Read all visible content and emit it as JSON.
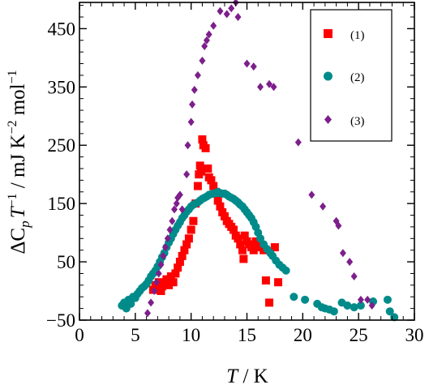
{
  "chart_data": {
    "type": "scatter",
    "xlabel_main": "T",
    "xlabel_unit": " / K",
    "ylabel_delta": "ΔC",
    "ylabel_sub": "p",
    "ylabel_T": "T",
    "ylabel_exp1": "−1",
    "ylabel_mid": " / mJ K",
    "ylabel_exp2": "−2",
    "ylabel_mol": " mol",
    "ylabel_exp3": "−1",
    "xlim": [
      0,
      30
    ],
    "ylim": [
      -50,
      495
    ],
    "xticks": [
      0,
      5,
      10,
      15,
      20,
      25,
      30
    ],
    "yticks": [
      -50,
      50,
      150,
      250,
      350,
      450
    ],
    "ytick_labels": [
      "−50",
      "50",
      "150",
      "250",
      "350",
      "450"
    ],
    "legend_position": "top-right",
    "series": [
      {
        "name": "(1)",
        "marker": "square",
        "color": "#ff0000",
        "points": [
          [
            6.6,
            2
          ],
          [
            6.8,
            10
          ],
          [
            7.0,
            5
          ],
          [
            7.1,
            15
          ],
          [
            7.3,
            0
          ],
          [
            7.4,
            8
          ],
          [
            7.6,
            12
          ],
          [
            7.8,
            20
          ],
          [
            8.0,
            10
          ],
          [
            8.2,
            25
          ],
          [
            8.4,
            15
          ],
          [
            8.6,
            30
          ],
          [
            8.8,
            40
          ],
          [
            9.0,
            50
          ],
          [
            9.2,
            60
          ],
          [
            9.4,
            70
          ],
          [
            9.6,
            80
          ],
          [
            9.8,
            90
          ],
          [
            10.0,
            105
          ],
          [
            10.2,
            120
          ],
          [
            10.4,
            150
          ],
          [
            10.6,
            180
          ],
          [
            10.7,
            200
          ],
          [
            10.8,
            215
          ],
          [
            10.9,
            205
          ],
          [
            11.0,
            260
          ],
          [
            11.1,
            250
          ],
          [
            11.3,
            245
          ],
          [
            11.5,
            210
          ],
          [
            11.6,
            195
          ],
          [
            11.8,
            190
          ],
          [
            12.0,
            180
          ],
          [
            12.2,
            170
          ],
          [
            12.4,
            155
          ],
          [
            12.6,
            145
          ],
          [
            12.8,
            135
          ],
          [
            13.0,
            128
          ],
          [
            13.2,
            120
          ],
          [
            13.4,
            115
          ],
          [
            13.6,
            110
          ],
          [
            13.8,
            105
          ],
          [
            14.0,
            95
          ],
          [
            14.2,
            90
          ],
          [
            14.4,
            80
          ],
          [
            14.6,
            70
          ],
          [
            14.7,
            55
          ],
          [
            14.8,
            95
          ],
          [
            15.0,
            85
          ],
          [
            15.2,
            80
          ],
          [
            15.4,
            75
          ],
          [
            15.6,
            70
          ],
          [
            15.8,
            85
          ],
          [
            16.0,
            80
          ],
          [
            16.2,
            75
          ],
          [
            16.5,
            70
          ],
          [
            16.7,
            18
          ],
          [
            17.0,
            -20
          ],
          [
            17.5,
            75
          ],
          [
            17.8,
            15
          ]
        ]
      },
      {
        "name": "(2)",
        "marker": "circle",
        "color": "#008b8b",
        "points": [
          [
            3.8,
            -25
          ],
          [
            4.0,
            -20
          ],
          [
            4.2,
            -30
          ],
          [
            4.4,
            -15
          ],
          [
            4.6,
            -22
          ],
          [
            4.8,
            -10
          ],
          [
            5.0,
            -12
          ],
          [
            5.2,
            -5
          ],
          [
            5.4,
            0
          ],
          [
            5.6,
            5
          ],
          [
            5.8,
            8
          ],
          [
            6.0,
            12
          ],
          [
            6.2,
            18
          ],
          [
            6.4,
            25
          ],
          [
            6.6,
            30
          ],
          [
            6.8,
            35
          ],
          [
            7.0,
            42
          ],
          [
            7.2,
            50
          ],
          [
            7.4,
            58
          ],
          [
            7.6,
            65
          ],
          [
            7.8,
            75
          ],
          [
            8.0,
            83
          ],
          [
            8.2,
            90
          ],
          [
            8.4,
            98
          ],
          [
            8.6,
            105
          ],
          [
            8.8,
            112
          ],
          [
            9.0,
            118
          ],
          [
            9.2,
            125
          ],
          [
            9.4,
            130
          ],
          [
            9.6,
            136
          ],
          [
            9.8,
            140
          ],
          [
            10.0,
            145
          ],
          [
            10.2,
            148
          ],
          [
            10.4,
            150
          ],
          [
            10.6,
            152
          ],
          [
            10.8,
            155
          ],
          [
            11.0,
            158
          ],
          [
            11.2,
            160
          ],
          [
            11.4,
            162
          ],
          [
            11.6,
            165
          ],
          [
            11.8,
            166
          ],
          [
            12.0,
            167
          ],
          [
            12.2,
            168
          ],
          [
            12.4,
            170
          ],
          [
            12.6,
            168
          ],
          [
            12.8,
            167
          ],
          [
            13.0,
            167
          ],
          [
            13.2,
            165
          ],
          [
            13.4,
            162
          ],
          [
            13.6,
            160
          ],
          [
            13.8,
            158
          ],
          [
            14.0,
            155
          ],
          [
            14.2,
            152
          ],
          [
            14.4,
            148
          ],
          [
            14.6,
            145
          ],
          [
            14.8,
            140
          ],
          [
            15.0,
            135
          ],
          [
            15.2,
            130
          ],
          [
            15.4,
            125
          ],
          [
            15.6,
            118
          ],
          [
            15.8,
            110
          ],
          [
            16.0,
            100
          ],
          [
            16.2,
            90
          ],
          [
            16.5,
            80
          ],
          [
            16.8,
            72
          ],
          [
            17.1,
            65
          ],
          [
            17.3,
            60
          ],
          [
            17.6,
            52
          ],
          [
            17.9,
            45
          ],
          [
            18.2,
            40
          ],
          [
            18.5,
            35
          ],
          [
            19.2,
            -10
          ],
          [
            20.2,
            -15
          ],
          [
            21.3,
            -22
          ],
          [
            21.7,
            -28
          ],
          [
            22.0,
            -30
          ],
          [
            22.4,
            -32
          ],
          [
            22.8,
            -35
          ],
          [
            23.5,
            -20
          ],
          [
            24.0,
            -25
          ],
          [
            24.6,
            -28
          ],
          [
            25.2,
            -25
          ],
          [
            26.3,
            -18
          ],
          [
            27.6,
            -15
          ],
          [
            27.8,
            -35
          ],
          [
            28.2,
            -45
          ]
        ]
      },
      {
        "name": "(3)",
        "marker": "diamond",
        "color": "#7d1f8b",
        "points": [
          [
            6.1,
            -38
          ],
          [
            6.4,
            -20
          ],
          [
            6.7,
            0
          ],
          [
            6.9,
            15
          ],
          [
            7.1,
            30
          ],
          [
            7.3,
            45
          ],
          [
            7.5,
            60
          ],
          [
            7.7,
            75
          ],
          [
            7.9,
            90
          ],
          [
            8.1,
            105
          ],
          [
            8.3,
            120
          ],
          [
            8.5,
            140
          ],
          [
            8.7,
            150
          ],
          [
            8.8,
            160
          ],
          [
            9.0,
            165
          ],
          [
            9.2,
            140
          ],
          [
            9.6,
            200
          ],
          [
            9.7,
            250
          ],
          [
            10.0,
            290
          ],
          [
            10.1,
            320
          ],
          [
            10.3,
            345
          ],
          [
            10.6,
            370
          ],
          [
            11.0,
            395
          ],
          [
            11.2,
            420
          ],
          [
            11.4,
            430
          ],
          [
            11.6,
            440
          ],
          [
            12.0,
            455
          ],
          [
            12.6,
            480
          ],
          [
            13.2,
            475
          ],
          [
            13.6,
            485
          ],
          [
            14.0,
            495
          ],
          [
            14.2,
            470
          ],
          [
            15.0,
            390
          ],
          [
            15.6,
            385
          ],
          [
            16.2,
            350
          ],
          [
            17.0,
            355
          ],
          [
            17.4,
            350
          ],
          [
            19.6,
            255
          ],
          [
            20.8,
            165
          ],
          [
            21.8,
            145
          ],
          [
            23.0,
            120
          ],
          [
            23.2,
            112
          ],
          [
            23.6,
            65
          ],
          [
            24.2,
            50
          ],
          [
            24.6,
            25
          ],
          [
            25.2,
            -15
          ],
          [
            25.8,
            -15
          ],
          [
            26.2,
            -25
          ]
        ]
      }
    ]
  }
}
